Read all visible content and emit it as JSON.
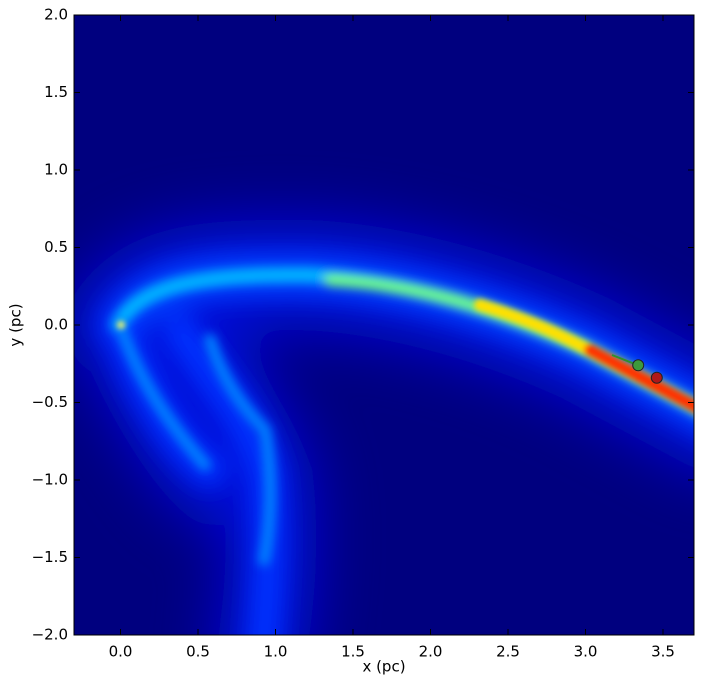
{
  "chart_data": {
    "type": "scatter",
    "xlabel": "x (pc)",
    "ylabel": "y (pc)",
    "x": [
      3.34,
      3.46
    ],
    "values": [
      -0.26,
      -0.34
    ],
    "colors": [
      "#3c9a3c",
      "#b01818"
    ],
    "xlim": [
      -0.3,
      3.7
    ],
    "ylim": [
      -2,
      2
    ],
    "xticks": [
      {
        "value": 0,
        "label": "0.0"
      },
      {
        "value": 0.5,
        "label": "0.5"
      },
      {
        "value": 1,
        "label": "1.0"
      },
      {
        "value": 1.5,
        "label": "1.5"
      },
      {
        "value": 2,
        "label": "2.0"
      },
      {
        "value": 2.5,
        "label": "2.5"
      },
      {
        "value": 3,
        "label": "3.0"
      },
      {
        "value": 3.5,
        "label": "3.5"
      }
    ],
    "yticks": [
      {
        "value": -2,
        "label": "−2.0"
      },
      {
        "value": -1.5,
        "label": "−1.5"
      },
      {
        "value": -1,
        "label": "−1.0"
      },
      {
        "value": -0.5,
        "label": "−0.5"
      },
      {
        "value": 0,
        "label": "0.0"
      },
      {
        "value": 0.5,
        "label": "0.5"
      },
      {
        "value": 1,
        "label": "1.0"
      },
      {
        "value": 1.5,
        "label": "1.5"
      },
      {
        "value": 2,
        "label": "2.0"
      }
    ],
    "grid": false
  }
}
